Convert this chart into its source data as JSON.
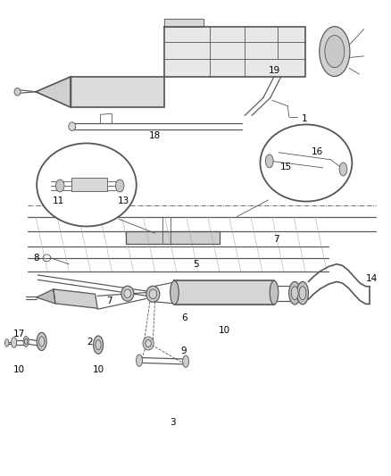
{
  "bg_color": "#ffffff",
  "line_color": "#555555",
  "figsize": [
    4.39,
    5.33
  ],
  "dpi": 100
}
